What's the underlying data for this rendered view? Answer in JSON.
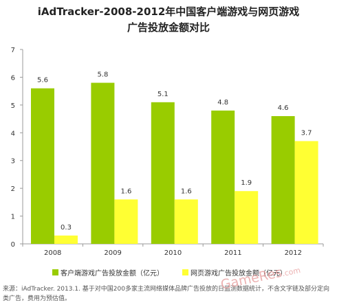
{
  "chart_data": {
    "type": "bar",
    "title_line1": "iAdTracker-2008-2012年中国客户端游戏与网页游戏",
    "title_line2": "广告投放金额对比",
    "categories": [
      "2008",
      "2009",
      "2010",
      "2011",
      "2012"
    ],
    "series": [
      {
        "name": "客户端游戏广告投放金额（亿元）",
        "values": [
          5.6,
          5.8,
          5.1,
          4.8,
          4.6
        ],
        "color": "#99cc00"
      },
      {
        "name": "网页游戏广告投放金额（亿元）",
        "values": [
          0.3,
          1.6,
          1.6,
          1.9,
          3.7
        ],
        "color": "#ffff33"
      }
    ],
    "data_labels": [
      [
        "5.6",
        "5.8",
        "5.1",
        "4.8",
        "4.6"
      ],
      [
        "0.3",
        "1.6",
        "1.6",
        "1.9",
        "3.7"
      ]
    ],
    "yticks": [
      "0",
      "1",
      "2",
      "3",
      "4",
      "5",
      "6",
      "7"
    ],
    "ylim": [
      0,
      7
    ],
    "grid": false,
    "legend_position": "bottom"
  },
  "source_text": "来源：iAdTracker. 2013.1. 基于对中国200多家主流网络媒体品牌广告投放的日监测数据统计，不含文字链及部分定向类广告，费用为预估值。",
  "watermark": {
    "main": "GameRes",
    "suffix": ".com"
  }
}
